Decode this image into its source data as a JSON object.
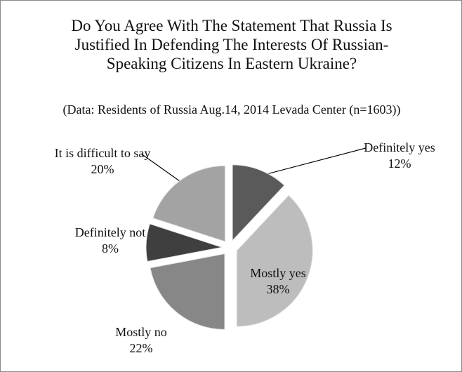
{
  "chart_data": {
    "type": "pie",
    "title": "Do You Agree With The Statement That Russia Is Justified In Defending The Interests Of Russian-Speaking Citizens In Eastern Ukraine?",
    "subtitle": "(Data: Residents of Russia Aug.14, 2014 Levada Center (n=1603))",
    "categories": [
      "Definitely yes",
      "Mostly yes",
      "Mostly no",
      "Definitely not",
      "It is difficult to say"
    ],
    "values": [
      12,
      38,
      22,
      8,
      20
    ],
    "value_labels": [
      "12%",
      "38%",
      "22%",
      "8%",
      "20%"
    ],
    "colors": [
      "#5a5a5a",
      "#bdbdbd",
      "#878787",
      "#3f3f3f",
      "#a3a3a3"
    ]
  }
}
